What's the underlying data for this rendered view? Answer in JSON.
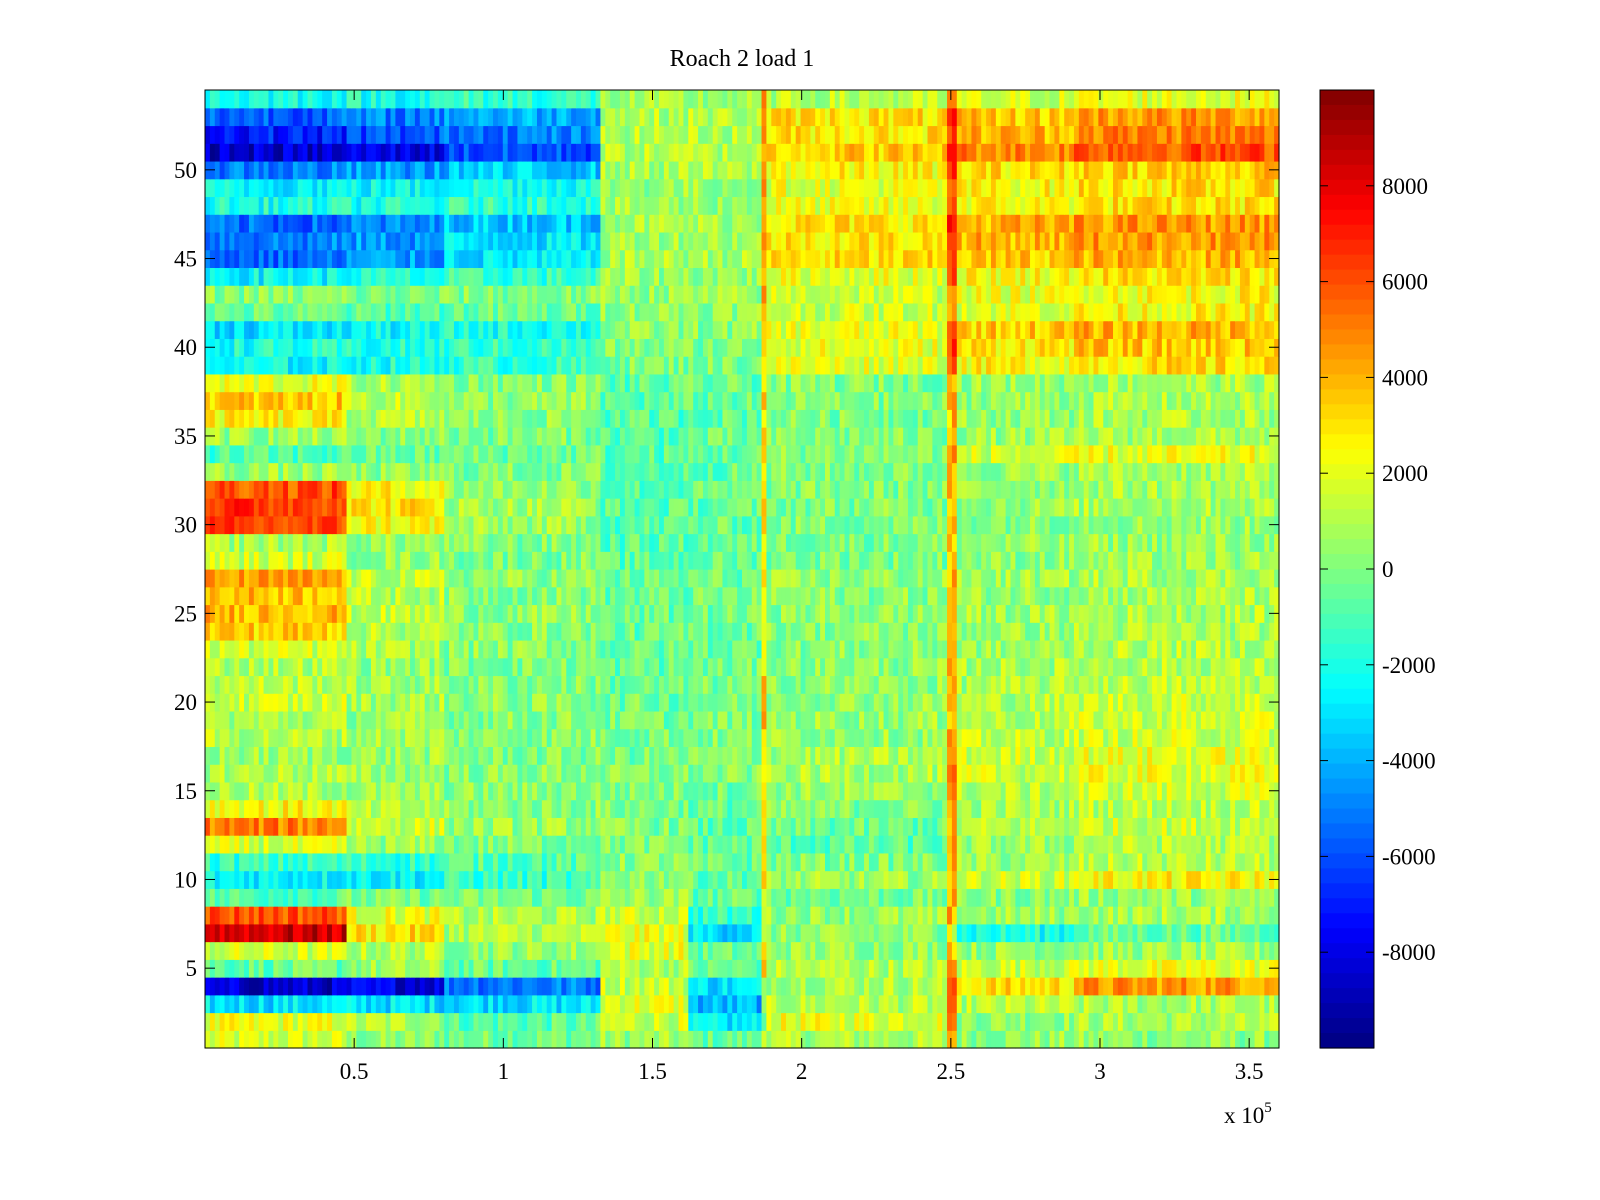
{
  "chart_data": {
    "type": "heatmap",
    "title": "Roach 2 load 1",
    "xlabel": "",
    "ylabel": "",
    "x_exponent_label": {
      "prefix": "x 10",
      "exponent": "5"
    },
    "xlim": [
      0,
      3.6
    ],
    "ylim": [
      0.5,
      54.5
    ],
    "x_ticks": [
      0.5,
      1,
      1.5,
      2,
      2.5,
      3,
      3.5
    ],
    "x_tick_labels": [
      "0.5",
      "1",
      "1.5",
      "2",
      "2.5",
      "3",
      "3.5"
    ],
    "y_ticks": [
      5,
      10,
      15,
      20,
      25,
      30,
      35,
      40,
      45,
      50
    ],
    "y_tick_labels": [
      "5",
      "10",
      "15",
      "20",
      "25",
      "30",
      "35",
      "40",
      "45",
      "50"
    ],
    "colormap": "jet",
    "clim": [
      -10000,
      10000
    ],
    "colorbar_ticks": [
      8000,
      6000,
      4000,
      2000,
      0,
      -2000,
      -4000,
      -6000,
      -8000
    ],
    "colorbar_tick_labels": [
      "8000",
      "6000",
      "4000",
      "2000",
      "0",
      "-2000",
      "-4000",
      "-6000",
      "-8000"
    ],
    "rows": 54,
    "column_breakpoints_x1e5": [
      0,
      0.47,
      0.8,
      1.32,
      1.62,
      1.88,
      2.5,
      2.92,
      3.6
    ],
    "segment_values": [
      [
        1500,
        200,
        -200,
        500,
        -500,
        800,
        400,
        300
      ],
      [
        2000,
        1000,
        -800,
        1500,
        -3000,
        2000,
        500,
        800
      ],
      [
        -3000,
        -3000,
        -3000,
        2000,
        -4000,
        1000,
        1000,
        800
      ],
      [
        -8500,
        -8000,
        -5000,
        1500,
        -3000,
        1000,
        3000,
        4500
      ],
      [
        -500,
        500,
        -500,
        1000,
        -500,
        1000,
        1500,
        2000
      ],
      [
        1500,
        1000,
        500,
        2000,
        -500,
        500,
        500,
        500
      ],
      [
        8500,
        3000,
        1000,
        2000,
        -3000,
        200,
        -2000,
        -500
      ],
      [
        6000,
        2000,
        800,
        1500,
        -1500,
        500,
        500,
        800
      ],
      [
        -800,
        -200,
        -200,
        500,
        -500,
        -200,
        200,
        500
      ],
      [
        -2500,
        -2500,
        -1500,
        500,
        -500,
        500,
        1500,
        2500
      ],
      [
        -1500,
        -1500,
        -800,
        200,
        -500,
        0,
        500,
        1000
      ],
      [
        1500,
        500,
        0,
        0,
        -500,
        -800,
        500,
        1000
      ],
      [
        5000,
        1500,
        500,
        0,
        -800,
        -500,
        1000,
        1500
      ],
      [
        2500,
        800,
        200,
        0,
        -500,
        0,
        800,
        1200
      ],
      [
        800,
        500,
        200,
        0,
        -200,
        500,
        1000,
        1500
      ],
      [
        1000,
        500,
        200,
        0,
        0,
        800,
        1500,
        2000
      ],
      [
        500,
        500,
        0,
        -200,
        0,
        800,
        1500,
        2000
      ],
      [
        1000,
        800,
        200,
        0,
        0,
        500,
        1200,
        1500
      ],
      [
        800,
        500,
        200,
        -200,
        0,
        500,
        1000,
        1500
      ],
      [
        1500,
        800,
        200,
        -300,
        -200,
        500,
        1000,
        1500
      ],
      [
        1200,
        600,
        100,
        -500,
        -200,
        300,
        800,
        1200
      ],
      [
        1000,
        500,
        0,
        -500,
        -300,
        300,
        800,
        1000
      ],
      [
        1500,
        800,
        200,
        -500,
        -300,
        200,
        500,
        1000
      ],
      [
        3500,
        1000,
        200,
        -500,
        -300,
        200,
        500,
        800
      ],
      [
        4000,
        1200,
        300,
        -500,
        -300,
        300,
        600,
        900
      ],
      [
        3800,
        1000,
        200,
        -500,
        -300,
        200,
        500,
        800
      ],
      [
        4200,
        1200,
        300,
        -500,
        -300,
        300,
        600,
        900
      ],
      [
        1500,
        500,
        0,
        -800,
        -500,
        0,
        300,
        500
      ],
      [
        800,
        500,
        0,
        -800,
        -500,
        0,
        300,
        500
      ],
      [
        6000,
        2500,
        500,
        -800,
        -500,
        0,
        300,
        500
      ],
      [
        6500,
        3000,
        800,
        -800,
        -500,
        0,
        500,
        800
      ],
      [
        6000,
        2500,
        500,
        -800,
        -500,
        0,
        500,
        800
      ],
      [
        500,
        200,
        0,
        -800,
        -500,
        0,
        500,
        800
      ],
      [
        -1000,
        -500,
        -300,
        -800,
        -500,
        200,
        1500,
        2000
      ],
      [
        500,
        200,
        0,
        -800,
        -500,
        0,
        500,
        800
      ],
      [
        2500,
        1000,
        200,
        -800,
        -500,
        0,
        500,
        800
      ],
      [
        3500,
        1200,
        300,
        -800,
        -500,
        0,
        500,
        800
      ],
      [
        2000,
        800,
        200,
        -800,
        -500,
        0,
        500,
        800
      ],
      [
        -2500,
        -2000,
        -1500,
        0,
        0,
        2000,
        2500,
        3000
      ],
      [
        -2000,
        -2000,
        -1500,
        0,
        0,
        2000,
        3000,
        3500
      ],
      [
        -3000,
        -2500,
        -2000,
        200,
        200,
        2000,
        3500,
        4000
      ],
      [
        -500,
        -800,
        -500,
        500,
        500,
        1500,
        2000,
        2500
      ],
      [
        200,
        -200,
        0,
        500,
        500,
        1500,
        2000,
        2500
      ],
      [
        -2500,
        -2000,
        -1500,
        500,
        500,
        2000,
        2500,
        3000
      ],
      [
        -5500,
        -4500,
        -3000,
        800,
        800,
        3000,
        3500,
        4000
      ],
      [
        -5000,
        -4500,
        -3000,
        800,
        800,
        3000,
        4000,
        4500
      ],
      [
        -5500,
        -5000,
        -3500,
        800,
        800,
        3000,
        4000,
        4500
      ],
      [
        -2000,
        -2000,
        -1500,
        500,
        500,
        2000,
        2500,
        3000
      ],
      [
        -2500,
        -2500,
        -2000,
        500,
        500,
        2000,
        2500,
        3000
      ],
      [
        -5000,
        -4500,
        -3500,
        800,
        800,
        2500,
        3000,
        3500
      ],
      [
        -8500,
        -8000,
        -6000,
        1000,
        1000,
        3500,
        5000,
        6000
      ],
      [
        -7000,
        -6000,
        -5000,
        1000,
        1000,
        3000,
        4000,
        5000
      ],
      [
        -5500,
        -5000,
        -4000,
        1000,
        1000,
        3000,
        3500,
        4500
      ],
      [
        -2000,
        -2000,
        -1500,
        500,
        500,
        1000,
        1500,
        2000
      ]
    ],
    "vertical_streaks": [
      {
        "x": 1.875,
        "amplitude": 3500
      },
      {
        "x": 2.505,
        "amplitude": 3500
      }
    ]
  }
}
